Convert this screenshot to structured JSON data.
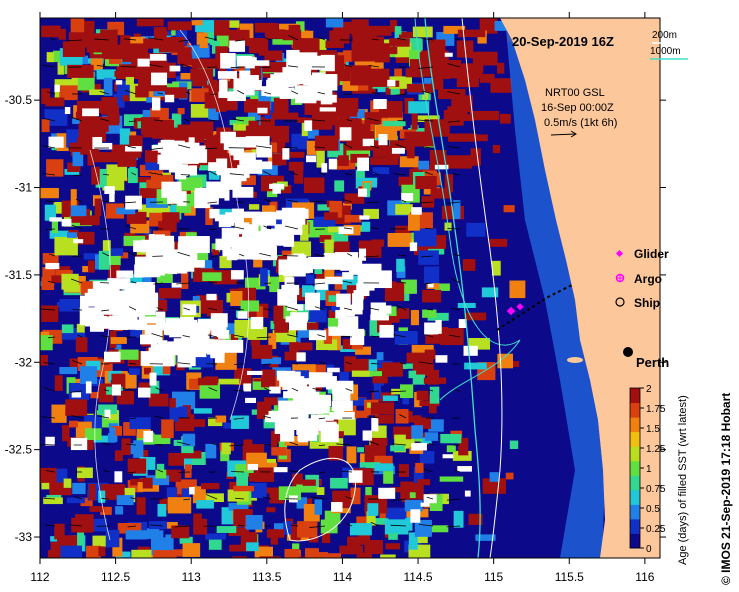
{
  "map": {
    "title": "20-Sep-2019 16Z",
    "depth_legend": {
      "contour_200": "200m",
      "contour_1000": "1000m",
      "color_200": "#ffffff",
      "color_1000": "#40e0d0"
    },
    "currents": {
      "line1": "NRT00 GSL",
      "line2": "16-Sep 00:00Z",
      "line3": "0.5m/s (1kt 6h)"
    },
    "markers": [
      {
        "label": "Glider",
        "symbol": "diamond",
        "color": "#ff00ff"
      },
      {
        "label": "Argo",
        "symbol": "asterisk",
        "color": "#ff00ff"
      },
      {
        "label": "Ship",
        "symbol": "circle",
        "color": "#000000"
      }
    ],
    "city": "Perth",
    "credit": "© IMOS 21-Sep-2019 17:18 Hobart",
    "land_color": "#fcc89b"
  },
  "axes": {
    "x_ticks": [
      "112",
      "112.5",
      "113",
      "113.5",
      "114",
      "114.5",
      "115",
      "115.5",
      "116"
    ],
    "y_ticks": [
      "-30.5",
      "-31",
      "-31.5",
      "-32",
      "-32.5",
      "-33"
    ],
    "x_range": [
      112,
      116.1
    ],
    "y_range": [
      -30.03,
      -33.12
    ]
  },
  "colorbar": {
    "label": "Age (days) of filled SST (wrt latest)",
    "ticks": [
      "2",
      "1.75",
      "1.5",
      "1.25",
      "1",
      "0.75",
      "0.5",
      "0.25",
      "0"
    ],
    "range": [
      0,
      2
    ],
    "colors": [
      "#0c0a8a",
      "#1030c8",
      "#2080e8",
      "#20c8d8",
      "#30d890",
      "#60e040",
      "#b8e020",
      "#f0c010",
      "#f08010",
      "#d84010",
      "#a01010"
    ]
  }
}
